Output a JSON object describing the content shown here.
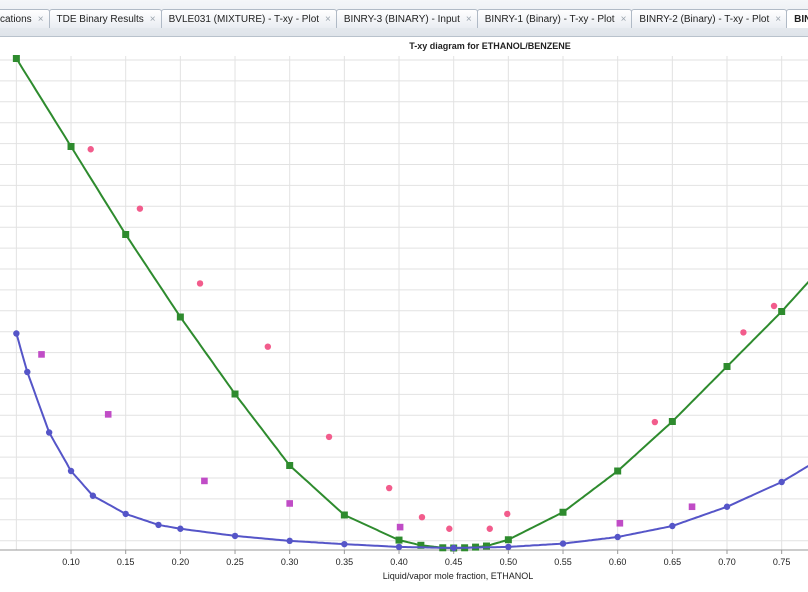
{
  "tabs": [
    {
      "label": "cations",
      "close": "×",
      "active": false
    },
    {
      "label": "TDE Binary Results",
      "close": "×",
      "active": false
    },
    {
      "label": "BVLE031 (MIXTURE) - T-xy - Plot",
      "close": "×",
      "active": false
    },
    {
      "label": "BINRY-3 (BINARY) - Input",
      "close": "×",
      "active": false
    },
    {
      "label": "BINRY-1 (Binary) - T-xy - Plot",
      "close": "×",
      "active": false
    },
    {
      "label": "BINRY-2 (Binary) - T-xy - Plot",
      "close": "×",
      "active": false
    },
    {
      "label": "BINRY",
      "close": "",
      "active": true
    }
  ],
  "chart_data": {
    "type": "scatter",
    "title": "T-xy diagram for ETHANOL/BENZENE",
    "xlabel": "Liquid/vapor mole fraction, ETHANOL",
    "ylabel": "",
    "xlim": [
      0.05,
      0.8
    ],
    "ylim": [
      0.0,
      1.0
    ],
    "grid": true,
    "x_ticks": [
      "0.10",
      "0.15",
      "0.20",
      "0.25",
      "0.30",
      "0.35",
      "0.40",
      "0.45",
      "0.50",
      "0.55",
      "0.60",
      "0.65",
      "0.70",
      "0.75"
    ],
    "colors": {
      "vapor": "#2e8b2e",
      "liquid": "#5555c8",
      "exp_vapor": "#f25c8c",
      "exp_liquid": "#c04cc6",
      "grid": "#e2e2e2"
    },
    "series": [
      {
        "role": "vapor",
        "x": [
          0.05,
          0.1,
          0.15,
          0.2,
          0.25,
          0.3,
          0.35,
          0.4,
          0.42,
          0.44,
          0.45,
          0.46,
          0.47,
          0.48,
          0.5,
          0.55,
          0.6,
          0.65,
          0.7,
          0.75,
          0.8
        ],
        "values": [
          0.89,
          0.73,
          0.57,
          0.42,
          0.28,
          0.15,
          0.06,
          0.0144,
          0.0049,
          0.0004,
          0.0,
          0.0004,
          0.0016,
          0.0036,
          0.015,
          0.065,
          0.14,
          0.23,
          0.33,
          0.43,
          0.54
        ]
      },
      {
        "role": "liquid",
        "x": [
          0.05,
          0.06,
          0.08,
          0.1,
          0.12,
          0.15,
          0.18,
          0.2,
          0.25,
          0.3,
          0.35,
          0.4,
          0.45,
          0.5,
          0.55,
          0.6,
          0.65,
          0.7,
          0.75,
          0.8
        ],
        "values": [
          0.39,
          0.32,
          0.21,
          0.14,
          0.095,
          0.062,
          0.042,
          0.035,
          0.022,
          0.013,
          0.007,
          0.002,
          0.0,
          0.002,
          0.008,
          0.02,
          0.04,
          0.075,
          0.12,
          0.18
        ]
      },
      {
        "role": "exp_vapor",
        "x": [
          0.118,
          0.163,
          0.218,
          0.28,
          0.336,
          0.391,
          0.421,
          0.446,
          0.483,
          0.499,
          0.634,
          0.715,
          0.743
        ],
        "values": [
          0.725,
          0.617,
          0.481,
          0.366,
          0.202,
          0.109,
          0.056,
          0.035,
          0.035,
          0.062,
          0.229,
          0.392,
          0.44
        ]
      },
      {
        "role": "exp_liquid",
        "x": [
          0.073,
          0.134,
          0.222,
          0.3,
          0.401,
          0.602,
          0.668
        ],
        "values": [
          0.352,
          0.243,
          0.122,
          0.081,
          0.038,
          0.045,
          0.075
        ]
      }
    ]
  }
}
